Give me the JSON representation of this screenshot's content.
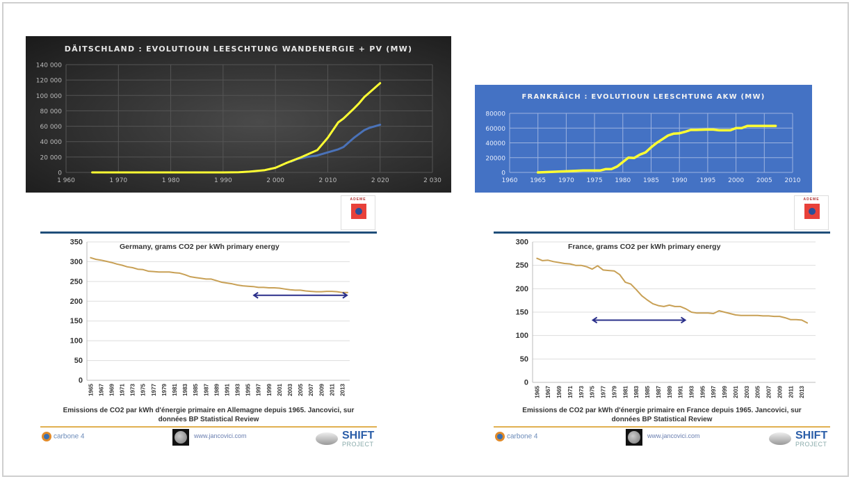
{
  "colors": {
    "yellow": "#ffff33",
    "blue": "#4a72b8",
    "gold": "#c8a055",
    "arrow": "#2a2f8a"
  },
  "chart_data": [
    {
      "id": "c1",
      "type": "line",
      "title": "DÄITSCHLAND :  EVOLUTIOUN LEESCHTUNG WANDENERGIE + PV (MW)",
      "xlim": [
        1960,
        2030
      ],
      "ylim": [
        0,
        140000
      ],
      "xticks": [
        1960,
        1970,
        1980,
        1990,
        2000,
        2010,
        2020,
        2030
      ],
      "xtick_labels": [
        "1 960",
        "1 970",
        "1 980",
        "1 990",
        "2 000",
        "2 010",
        "2 020",
        "2 030"
      ],
      "yticks": [
        0,
        20000,
        40000,
        60000,
        80000,
        100000,
        120000,
        140000
      ],
      "ytick_labels": [
        "0",
        "20 000",
        "40 000",
        "60 000",
        "80 000",
        "100 000",
        "120 000",
        "140 000"
      ],
      "grid": true,
      "series": [
        {
          "name": "Wandenergie",
          "color": "#4a72b8",
          "x": [
            2003,
            2004,
            2006,
            2008,
            2010,
            2012,
            2013,
            2015,
            2017,
            2018,
            2020
          ],
          "y": [
            14000,
            17000,
            20000,
            22000,
            26000,
            30000,
            33000,
            45000,
            55000,
            58000,
            62000
          ]
        },
        {
          "name": "Wandenergie + PV",
          "color": "#ffff33",
          "x": [
            1965,
            1990,
            1993,
            1995,
            1998,
            2000,
            2002,
            2005,
            2008,
            2010,
            2012,
            2013,
            2015,
            2016,
            2017,
            2018,
            2020
          ],
          "y": [
            0,
            0,
            200,
            1000,
            3000,
            6000,
            12000,
            20000,
            29000,
            45000,
            65000,
            70000,
            83000,
            90000,
            98000,
            104000,
            116000
          ]
        }
      ]
    },
    {
      "id": "c2",
      "type": "line",
      "title": "FRANKRÄICH :  EVOLUTIOUN LEESCHTUNG AKW (MW)",
      "xlim": [
        1960,
        2010
      ],
      "ylim": [
        0,
        80000
      ],
      "xticks": [
        1960,
        1965,
        1970,
        1975,
        1980,
        1985,
        1990,
        1995,
        2000,
        2005,
        2010
      ],
      "xtick_labels": [
        "1960",
        "1965",
        "1970",
        "1975",
        "1980",
        "1985",
        "1990",
        "1995",
        "2000",
        "2005",
        "2010"
      ],
      "yticks": [
        0,
        20000,
        40000,
        60000,
        80000
      ],
      "ytick_labels": [
        "0",
        "20000",
        "40000",
        "60000",
        "80000"
      ],
      "grid": true,
      "series": [
        {
          "name": "AKW",
          "color": "#ffff33",
          "x": [
            1965,
            1970,
            1973,
            1976,
            1977,
            1978,
            1979,
            1980,
            1981,
            1982,
            1983,
            1984,
            1985,
            1986,
            1987,
            1988,
            1989,
            1990,
            1991,
            1992,
            1993,
            1995,
            1996,
            1997,
            1999,
            2000,
            2001,
            2002,
            2007
          ],
          "y": [
            0,
            1500,
            2500,
            2500,
            4500,
            4500,
            8000,
            14000,
            20000,
            19500,
            24000,
            27000,
            34000,
            40000,
            45000,
            50000,
            52500,
            53000,
            55000,
            57500,
            57500,
            58000,
            58000,
            57000,
            57000,
            60000,
            60000,
            63000,
            63000
          ]
        }
      ]
    },
    {
      "id": "c3",
      "type": "line",
      "title": "Germany, grams CO2 per kWh primary energy",
      "caption": [
        "Emissions de CO2 par kWh d'énergie primaire en Allemagne depuis 1965. Jancovici, sur",
        "données BP Statistical Review"
      ],
      "xlim": [
        1964.3,
        2014.4
      ],
      "ylim": [
        0,
        350
      ],
      "xticks": [
        1965,
        1967,
        1969,
        1971,
        1973,
        1975,
        1977,
        1979,
        1981,
        1983,
        1985,
        1987,
        1989,
        1991,
        1993,
        1995,
        1997,
        1999,
        2001,
        2003,
        2005,
        2007,
        2009,
        2011,
        2013
      ],
      "xtick_labels": [
        "1965",
        "1967",
        "1969",
        "1971",
        "1973",
        "1975",
        "1977",
        "1979",
        "1981",
        "1983",
        "1985",
        "1987",
        "1989",
        "1991",
        "1993",
        "1995",
        "1997",
        "1999",
        "2001",
        "2003",
        "2005",
        "2007",
        "2009",
        "2011",
        "2013"
      ],
      "yticks": [
        0,
        50,
        100,
        150,
        200,
        250,
        300,
        350
      ],
      "ytick_labels": [
        "0",
        "50",
        "100",
        "150",
        "200",
        "250",
        "300",
        "350"
      ],
      "grid": true,
      "series": [
        {
          "name": "Germany",
          "color": "#c8a055",
          "x0": 1965,
          "y": [
            310,
            306,
            304,
            301,
            298,
            294,
            291,
            287,
            285,
            281,
            280,
            276,
            275,
            274,
            274,
            274,
            272,
            271,
            267,
            262,
            260,
            258,
            256,
            256,
            252,
            248,
            246,
            244,
            241,
            239,
            238,
            237,
            235,
            235,
            234,
            234,
            233,
            231,
            229,
            228,
            228,
            226,
            225,
            224,
            224,
            225,
            225,
            224,
            222,
            222
          ]
        }
      ],
      "arrow": {
        "x": [
          1996,
          2014
        ],
        "y": 215
      }
    },
    {
      "id": "c4",
      "type": "line",
      "title": "France, grams CO2 per kWh primary energy",
      "caption": [
        "Emissions de CO2 par kWh d'énergie primaire en France depuis 1965. Jancovici, sur",
        "données BP Statistical Review"
      ],
      "xlim": [
        1964.2,
        2015.5
      ],
      "ylim": [
        0,
        300
      ],
      "xticks": [
        1965,
        1967,
        1969,
        1971,
        1973,
        1975,
        1977,
        1979,
        1981,
        1983,
        1985,
        1987,
        1989,
        1991,
        1993,
        1995,
        1997,
        1999,
        2001,
        2003,
        2005,
        2007,
        2009,
        2011,
        2013
      ],
      "xtick_labels": [
        "1965",
        "1967",
        "1969",
        "1971",
        "1973",
        "1975",
        "1977",
        "1979",
        "1981",
        "1983",
        "1985",
        "1987",
        "1989",
        "1991",
        "1993",
        "1995",
        "1997",
        "1999",
        "2001",
        "2003",
        "2005",
        "2007",
        "2009",
        "2011",
        "2013"
      ],
      "yticks": [
        0,
        50,
        100,
        150,
        200,
        250,
        300
      ],
      "ytick_labels": [
        "0",
        "50",
        "100",
        "150",
        "200",
        "250",
        "300"
      ],
      "grid": true,
      "series": [
        {
          "name": "France",
          "color": "#c8a055",
          "x0": 1965,
          "y": [
            265,
            260,
            261,
            258,
            256,
            254,
            253,
            250,
            250,
            247,
            242,
            249,
            240,
            239,
            238,
            230,
            214,
            210,
            198,
            185,
            176,
            168,
            164,
            162,
            165,
            162,
            162,
            157,
            150,
            148,
            148,
            148,
            147,
            153,
            150,
            147,
            144,
            143,
            143,
            143,
            143,
            142,
            142,
            141,
            141,
            138,
            134,
            134,
            133,
            127
          ]
        }
      ],
      "arrow": {
        "x": [
          1975,
          1992
        ],
        "y": 133
      }
    }
  ],
  "logos": {
    "ademe": "ADEME",
    "carbone4": "carbone 4",
    "website": "www.jancovici.com",
    "shift_top": "SHIFT",
    "shift_bottom": "PROJECT"
  }
}
